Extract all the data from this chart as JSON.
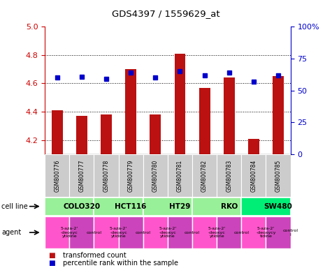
{
  "title": "GDS4397 / 1559629_at",
  "samples": [
    "GSM800776",
    "GSM800777",
    "GSM800778",
    "GSM800779",
    "GSM800780",
    "GSM800781",
    "GSM800782",
    "GSM800783",
    "GSM800784",
    "GSM800785"
  ],
  "red_values": [
    4.41,
    4.37,
    4.38,
    4.7,
    4.38,
    4.81,
    4.57,
    4.64,
    4.21,
    4.65
  ],
  "blue_values": [
    60,
    61,
    59,
    64,
    60,
    65,
    62,
    64,
    57,
    62
  ],
  "ylim_left": [
    4.1,
    5.0
  ],
  "ylim_right": [
    0,
    100
  ],
  "yticks_left": [
    4.2,
    4.4,
    4.6,
    4.8,
    5.0
  ],
  "yticks_right": [
    0,
    25,
    50,
    75,
    100
  ],
  "ytick_labels_right": [
    "0",
    "25",
    "50",
    "75",
    "100%"
  ],
  "cell_lines": [
    {
      "label": "COLO320",
      "span": [
        0,
        2
      ],
      "color": "#98F098"
    },
    {
      "label": "HCT116",
      "span": [
        2,
        4
      ],
      "color": "#98F098"
    },
    {
      "label": "HT29",
      "span": [
        4,
        6
      ],
      "color": "#98F098"
    },
    {
      "label": "RKO",
      "span": [
        6,
        8
      ],
      "color": "#98F098"
    },
    {
      "label": "SW480",
      "span": [
        8,
        10
      ],
      "color": "#00EE76"
    }
  ],
  "agents": [
    {
      "label": "5-aza-2'\n-deoxyc\nytidine",
      "span": [
        0,
        1
      ],
      "color": "#FF55CC"
    },
    {
      "label": "control",
      "span": [
        1,
        2
      ],
      "color": "#CC44BB"
    },
    {
      "label": "5-aza-2'\n-deoxyc\nytidine",
      "span": [
        2,
        3
      ],
      "color": "#FF55CC"
    },
    {
      "label": "control",
      "span": [
        3,
        4
      ],
      "color": "#CC44BB"
    },
    {
      "label": "5-aza-2'\n-deoxyc\nytidine",
      "span": [
        4,
        5
      ],
      "color": "#FF55CC"
    },
    {
      "label": "control",
      "span": [
        5,
        6
      ],
      "color": "#CC44BB"
    },
    {
      "label": "5-aza-2'\n-deoxyc\nytidine",
      "span": [
        6,
        7
      ],
      "color": "#FF55CC"
    },
    {
      "label": "control",
      "span": [
        7,
        8
      ],
      "color": "#CC44BB"
    },
    {
      "label": "5-aza-2'\n-deoxycy\ntidine",
      "span": [
        8,
        9
      ],
      "color": "#FF55CC"
    },
    {
      "label": "control\nl",
      "span": [
        9,
        10
      ],
      "color": "#CC44BB"
    }
  ],
  "bar_color": "#BB1111",
  "dot_color": "#0000CC",
  "bg_color": "#FFFFFF",
  "tick_color_left": "#CC0000",
  "tick_color_right": "#0000CC",
  "bar_bottom": 4.1,
  "legend_red": "transformed count",
  "legend_blue": "percentile rank within the sample",
  "cell_line_label": "cell line",
  "agent_label": "agent",
  "sample_bg": "#CCCCCC"
}
